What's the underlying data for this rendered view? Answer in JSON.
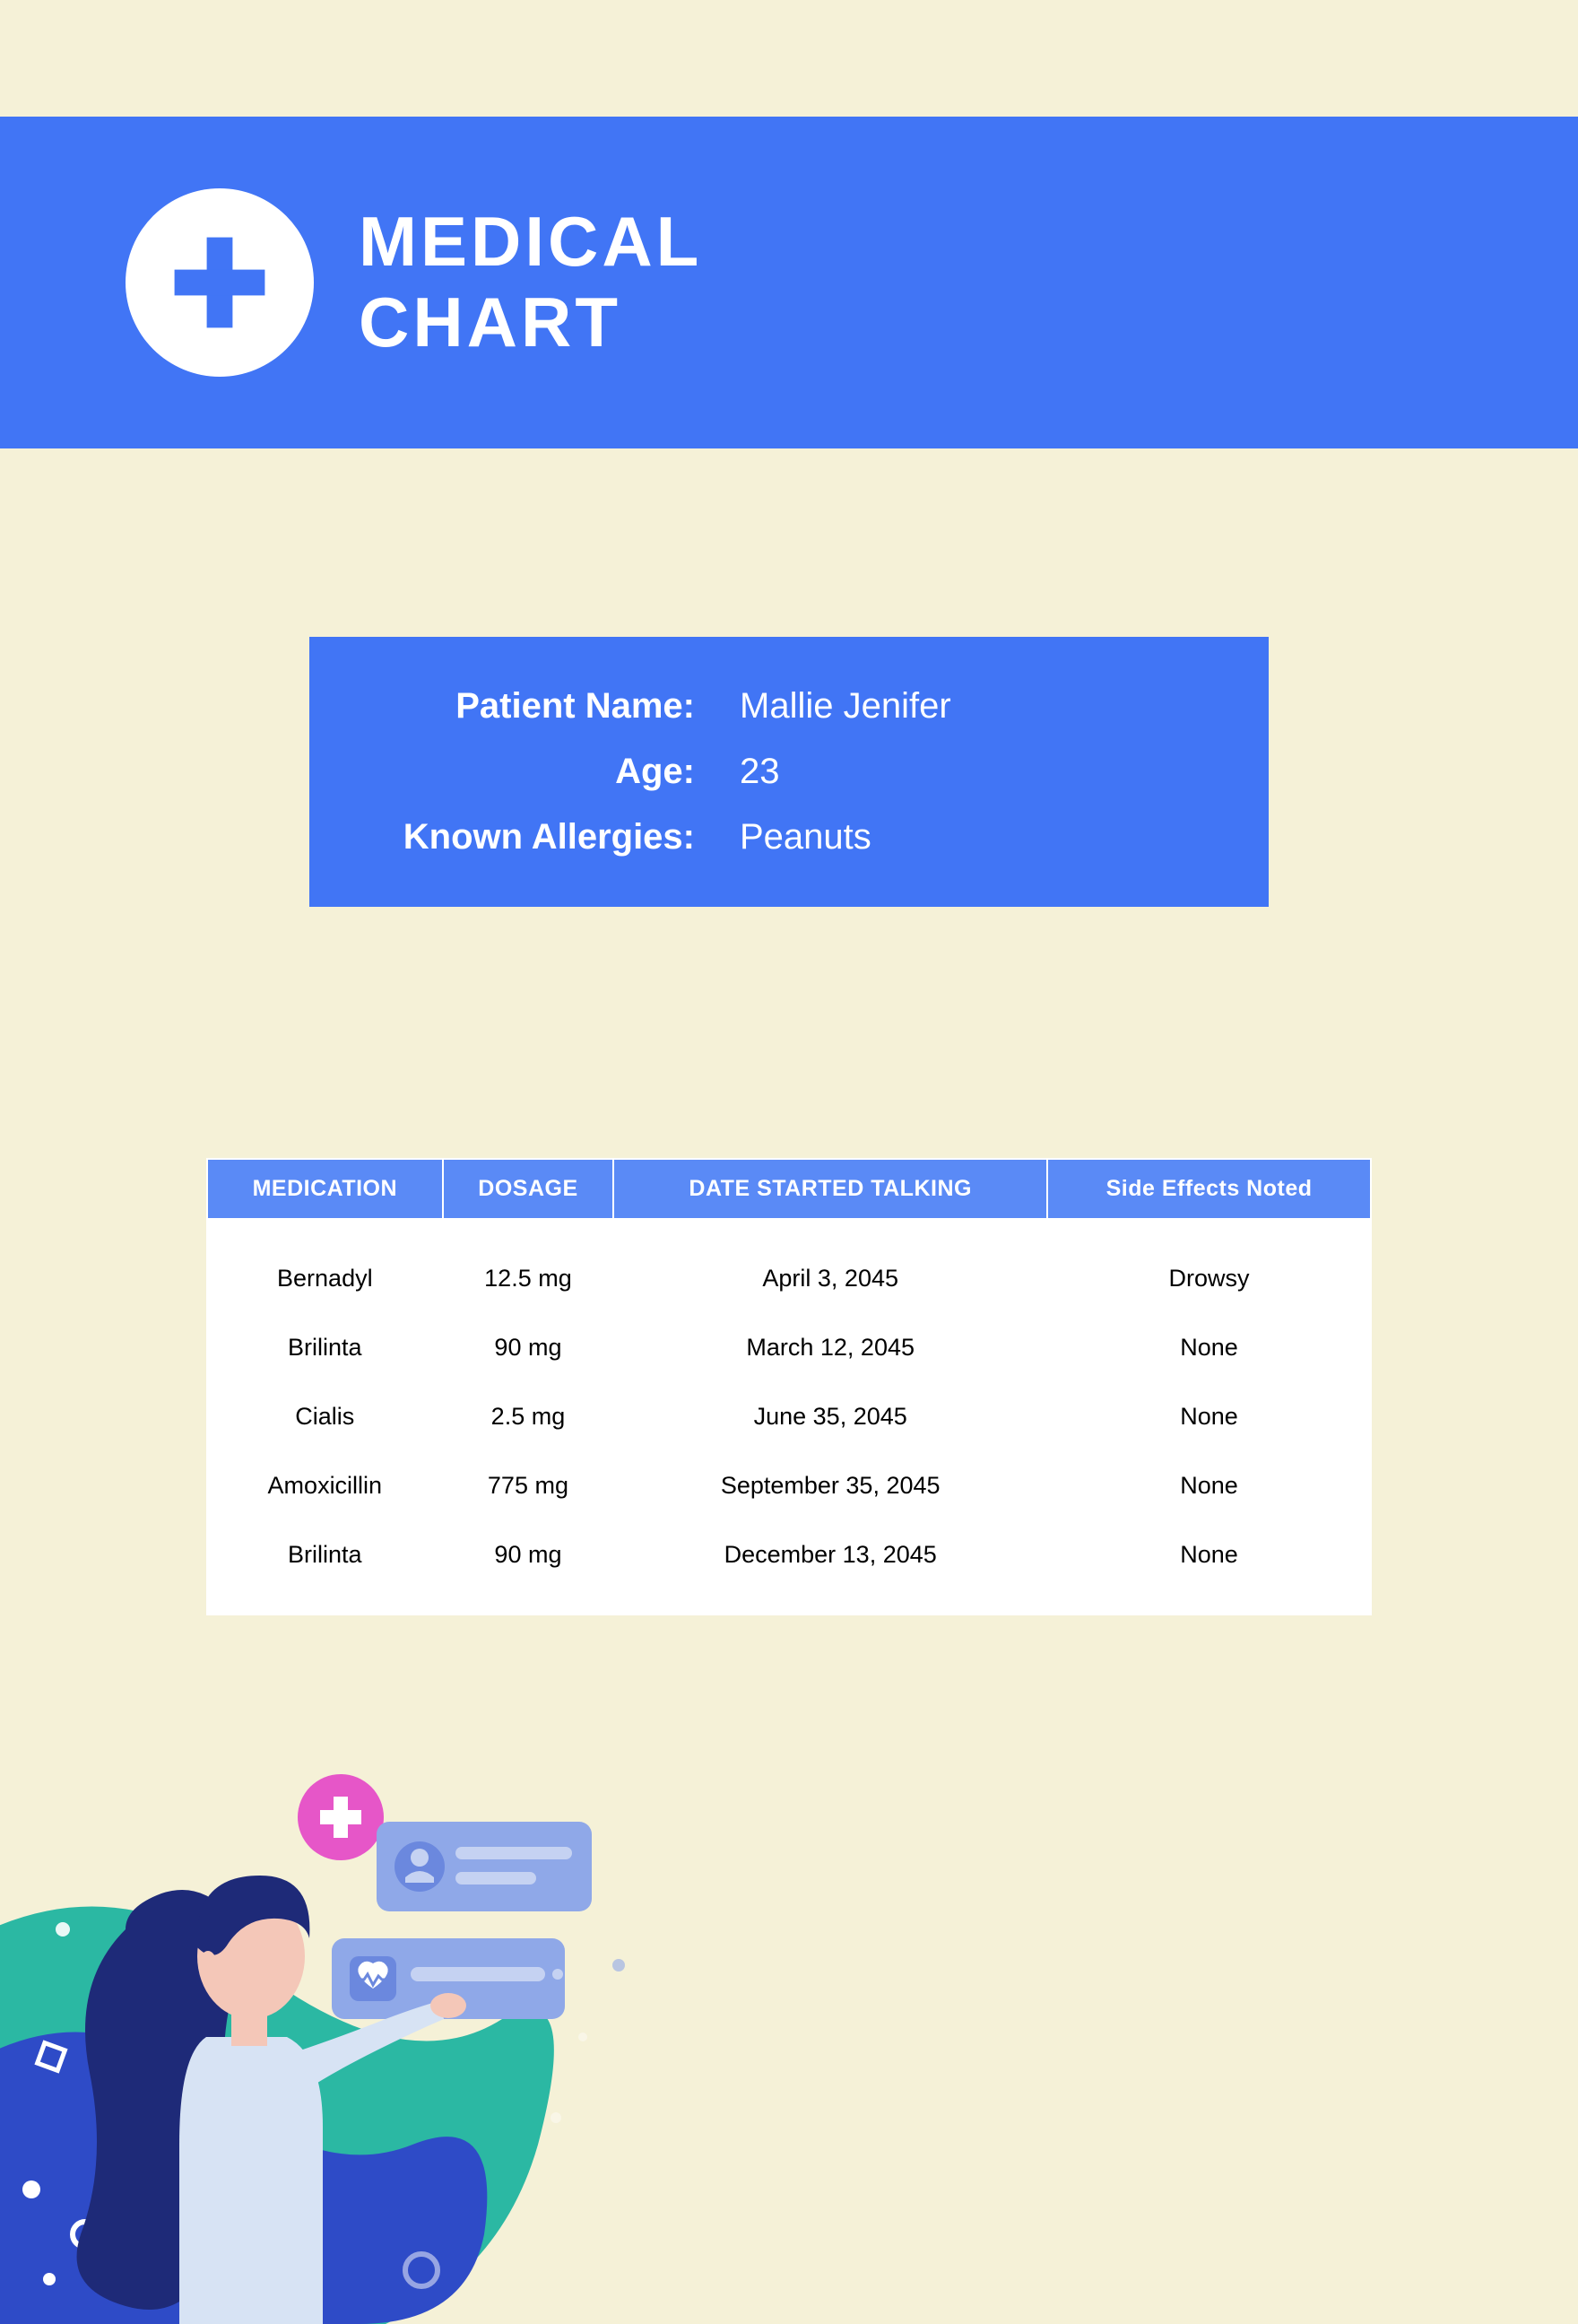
{
  "header": {
    "title_line1": "MEDICAL",
    "title_line2": "CHART",
    "banner_color": "#4175f5",
    "logo_bg": "#ffffff",
    "plus_color": "#4175f5",
    "text_color": "#ffffff"
  },
  "patient": {
    "card_color": "#4175f5",
    "text_color": "#ffffff",
    "name_label": "Patient Name:",
    "name_value": "Mallie Jenifer",
    "age_label": "Age:",
    "age_value": "23",
    "allergies_label": "Known Allergies:",
    "allergies_value": "Peanuts"
  },
  "medications": {
    "header_bg": "#5a8af6",
    "header_text_color": "#ffffff",
    "body_bg": "#ffffff",
    "body_text_color": "#000000",
    "columns": [
      "MEDICATION",
      "DOSAGE",
      "DATE STARTED TALKING",
      "Side Effects Noted"
    ],
    "rows": [
      [
        "Bernadyl",
        "12.5 mg",
        "April 3, 2045",
        "Drowsy"
      ],
      [
        "Brilinta",
        "90 mg",
        "March 12, 2045",
        "None"
      ],
      [
        "Cialis",
        "2.5 mg",
        "June 35, 2045",
        "None"
      ],
      [
        "Amoxicillin",
        "775 mg",
        "September 35, 2045",
        "None"
      ],
      [
        "Brilinta",
        "90 mg",
        "December 13, 2045",
        "None"
      ]
    ]
  },
  "illustration": {
    "wave_teal": "#2bb8a3",
    "wave_blue": "#2e4bc7",
    "nurse_hair": "#1e2a78",
    "nurse_skin": "#f4c7b8",
    "nurse_uniform": "#d7e3f4",
    "card_bg": "#8fa8e8",
    "card_line": "#c5d2f2",
    "badge_pink": "#e656c8",
    "badge_white": "#ffffff",
    "dot_color": "#ffffff"
  },
  "page_bg": "#f5f1d7"
}
